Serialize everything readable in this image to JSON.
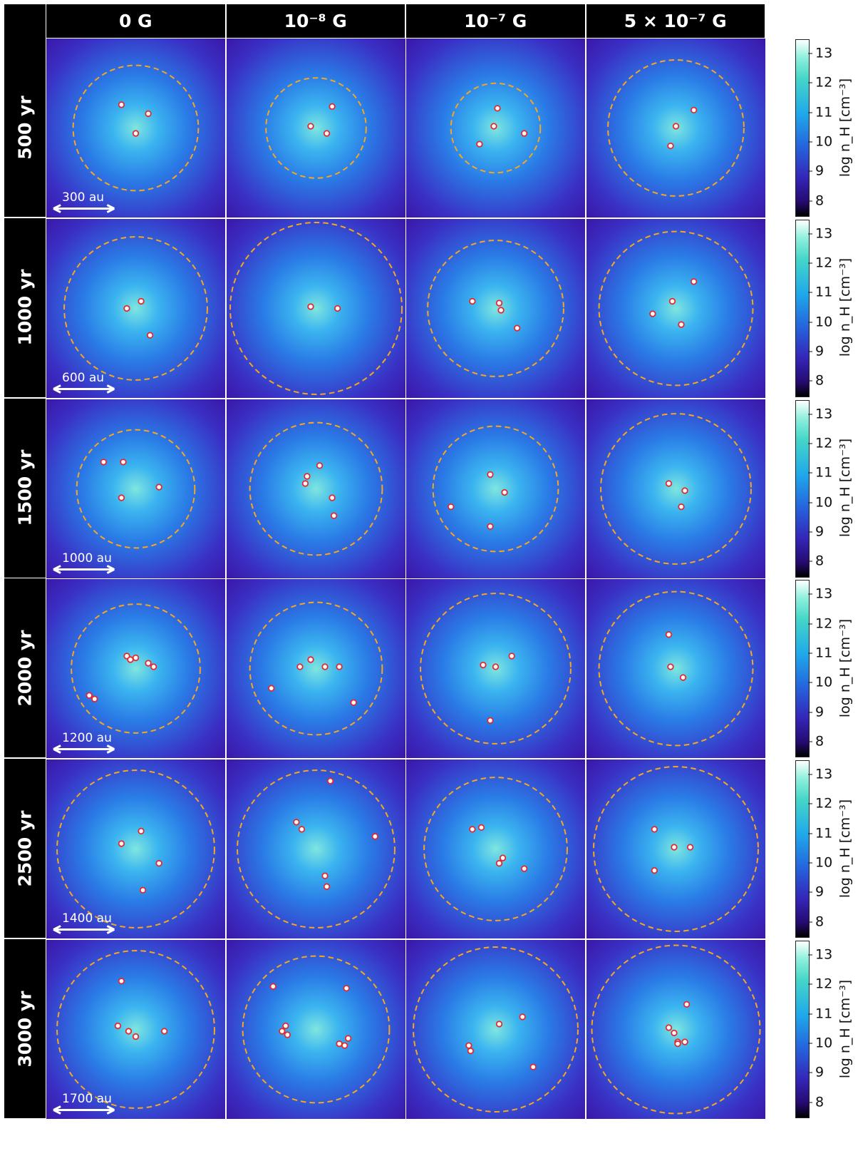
{
  "columns": [
    "0 G",
    "10⁻⁸ G",
    "10⁻⁷ G",
    "5 × 10⁻⁷ G"
  ],
  "rows": [
    {
      "label": "500 yr",
      "scale": "300 au"
    },
    {
      "label": "1000 yr",
      "scale": "600 au"
    },
    {
      "label": "1500 yr",
      "scale": "1000 au"
    },
    {
      "label": "2000 yr",
      "scale": "1200 au"
    },
    {
      "label": "2500 yr",
      "scale": "1400 au"
    },
    {
      "label": "3000 yr",
      "scale": "1700 au"
    }
  ],
  "colorbar": {
    "label": "log n_H [cm⁻³]",
    "ticks": [
      "13",
      "12",
      "11",
      "10",
      "9",
      "8"
    ]
  },
  "colors": {
    "circle": "#f5a623",
    "sink": "#e8262a",
    "header_bg": "#000000"
  }
}
